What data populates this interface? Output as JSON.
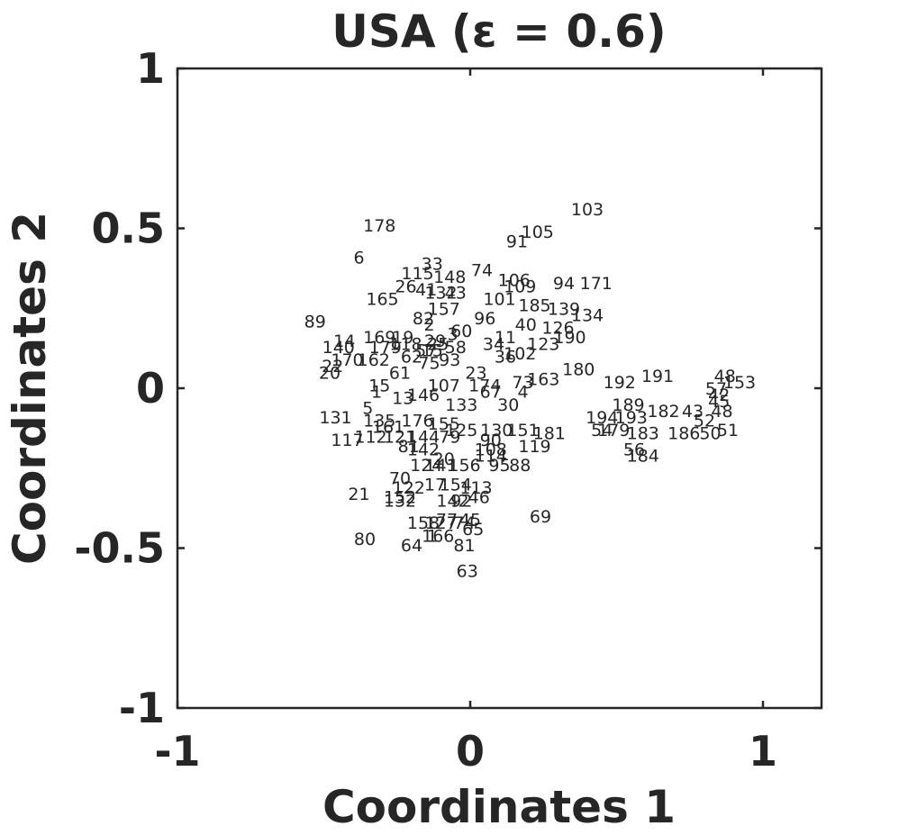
{
  "chart_data": {
    "type": "scatter",
    "title": "USA (ε = 0.6)",
    "xlabel": "Coordinates 1",
    "ylabel": "Coordinates 2",
    "xlim": [
      -1,
      1.2
    ],
    "ylim": [
      -1,
      1
    ],
    "xticks": [
      -1,
      0,
      1
    ],
    "yticks": [
      -1,
      -0.5,
      0,
      0.5,
      1
    ],
    "xtick_labels": [
      "-1",
      "0",
      "1"
    ],
    "ytick_labels": [
      "-1",
      "-0.5",
      "0",
      "0.5",
      "1"
    ],
    "grid": false,
    "marker": "text",
    "points": [
      {
        "label": "103",
        "x": 0.4,
        "y": 0.56
      },
      {
        "label": "178",
        "x": -0.31,
        "y": 0.51
      },
      {
        "label": "105",
        "x": 0.23,
        "y": 0.49
      },
      {
        "label": "91",
        "x": 0.16,
        "y": 0.46
      },
      {
        "label": "6",
        "x": -0.38,
        "y": 0.41
      },
      {
        "label": "33",
        "x": -0.13,
        "y": 0.39
      },
      {
        "label": "74",
        "x": 0.04,
        "y": 0.37
      },
      {
        "label": "115",
        "x": -0.18,
        "y": 0.36
      },
      {
        "label": "148",
        "x": -0.07,
        "y": 0.35
      },
      {
        "label": "106",
        "x": 0.15,
        "y": 0.34
      },
      {
        "label": "94",
        "x": 0.32,
        "y": 0.33
      },
      {
        "label": "171",
        "x": 0.43,
        "y": 0.33
      },
      {
        "label": "26",
        "x": -0.22,
        "y": 0.32
      },
      {
        "label": "109",
        "x": 0.17,
        "y": 0.32
      },
      {
        "label": "41",
        "x": -0.15,
        "y": 0.31
      },
      {
        "label": "132",
        "x": -0.1,
        "y": 0.3
      },
      {
        "label": "43",
        "x": -0.05,
        "y": 0.3
      },
      {
        "label": "165",
        "x": -0.3,
        "y": 0.28
      },
      {
        "label": "101",
        "x": 0.1,
        "y": 0.28
      },
      {
        "label": "185",
        "x": 0.22,
        "y": 0.26
      },
      {
        "label": "139",
        "x": 0.32,
        "y": 0.25
      },
      {
        "label": "157",
        "x": -0.09,
        "y": 0.25
      },
      {
        "label": "134",
        "x": 0.4,
        "y": 0.23
      },
      {
        "label": "82",
        "x": -0.16,
        "y": 0.22
      },
      {
        "label": "96",
        "x": 0.05,
        "y": 0.22
      },
      {
        "label": "89",
        "x": -0.53,
        "y": 0.21
      },
      {
        "label": "2",
        "x": -0.14,
        "y": 0.2
      },
      {
        "label": "40",
        "x": 0.19,
        "y": 0.2
      },
      {
        "label": "126",
        "x": 0.3,
        "y": 0.19
      },
      {
        "label": "60",
        "x": -0.03,
        "y": 0.18
      },
      {
        "label": "190",
        "x": 0.34,
        "y": 0.16
      },
      {
        "label": "169",
        "x": -0.31,
        "y": 0.16
      },
      {
        "label": "19",
        "x": -0.23,
        "y": 0.16
      },
      {
        "label": "3",
        "x": -0.06,
        "y": 0.17
      },
      {
        "label": "11",
        "x": 0.12,
        "y": 0.16
      },
      {
        "label": "29",
        "x": -0.12,
        "y": 0.15
      },
      {
        "label": "123",
        "x": 0.25,
        "y": 0.14
      },
      {
        "label": "14",
        "x": -0.43,
        "y": 0.15
      },
      {
        "label": "118",
        "x": -0.22,
        "y": 0.14
      },
      {
        "label": "25",
        "x": -0.11,
        "y": 0.14
      },
      {
        "label": "34",
        "x": 0.08,
        "y": 0.14
      },
      {
        "label": "140",
        "x": -0.45,
        "y": 0.13
      },
      {
        "label": "179",
        "x": -0.29,
        "y": 0.13
      },
      {
        "label": "58",
        "x": -0.05,
        "y": 0.13
      },
      {
        "label": "102",
        "x": 0.17,
        "y": 0.11
      },
      {
        "label": "57",
        "x": -0.15,
        "y": 0.12
      },
      {
        "label": "15",
        "x": -0.13,
        "y": 0.12
      },
      {
        "label": "62",
        "x": -0.2,
        "y": 0.1
      },
      {
        "label": "36",
        "x": 0.12,
        "y": 0.1
      },
      {
        "label": "170",
        "x": -0.42,
        "y": 0.09
      },
      {
        "label": "162",
        "x": -0.33,
        "y": 0.09
      },
      {
        "label": "75",
        "x": -0.14,
        "y": 0.08
      },
      {
        "label": "93",
        "x": -0.07,
        "y": 0.09
      },
      {
        "label": "22",
        "x": -0.47,
        "y": 0.07
      },
      {
        "label": "23",
        "x": 0.02,
        "y": 0.05
      },
      {
        "label": "180",
        "x": 0.37,
        "y": 0.06
      },
      {
        "label": "20",
        "x": -0.48,
        "y": 0.05
      },
      {
        "label": "61",
        "x": -0.24,
        "y": 0.05
      },
      {
        "label": "191",
        "x": 0.64,
        "y": 0.04
      },
      {
        "label": "163",
        "x": 0.25,
        "y": 0.03
      },
      {
        "label": "48",
        "x": 0.87,
        "y": 0.04
      },
      {
        "label": "73",
        "x": 0.18,
        "y": 0.02
      },
      {
        "label": "153",
        "x": 0.92,
        "y": 0.02
      },
      {
        "label": "192",
        "x": 0.51,
        "y": 0.02
      },
      {
        "label": "15",
        "x": -0.31,
        "y": 0.01
      },
      {
        "label": "107",
        "x": -0.09,
        "y": 0.01
      },
      {
        "label": "174",
        "x": 0.05,
        "y": 0.01
      },
      {
        "label": "1",
        "x": -0.32,
        "y": -0.01
      },
      {
        "label": "4",
        "x": 0.18,
        "y": -0.01
      },
      {
        "label": "67",
        "x": 0.07,
        "y": -0.01
      },
      {
        "label": "57",
        "x": 0.84,
        "y": 0.0
      },
      {
        "label": "13",
        "x": -0.23,
        "y": -0.03
      },
      {
        "label": "146",
        "x": -0.16,
        "y": -0.02
      },
      {
        "label": "42",
        "x": 0.85,
        "y": -0.02
      },
      {
        "label": "5",
        "x": -0.35,
        "y": -0.06
      },
      {
        "label": "133",
        "x": -0.03,
        "y": -0.05
      },
      {
        "label": "30",
        "x": 0.13,
        "y": -0.05
      },
      {
        "label": "189",
        "x": 0.54,
        "y": -0.05
      },
      {
        "label": "45",
        "x": 0.85,
        "y": -0.04
      },
      {
        "label": "182",
        "x": 0.66,
        "y": -0.07
      },
      {
        "label": "43",
        "x": 0.76,
        "y": -0.07
      },
      {
        "label": "48",
        "x": 0.86,
        "y": -0.07
      },
      {
        "label": "131",
        "x": -0.46,
        "y": -0.09
      },
      {
        "label": "194",
        "x": 0.45,
        "y": -0.09
      },
      {
        "label": "193",
        "x": 0.55,
        "y": -0.09
      },
      {
        "label": "52",
        "x": 0.8,
        "y": -0.1
      },
      {
        "label": "135",
        "x": -0.31,
        "y": -0.1
      },
      {
        "label": "176",
        "x": -0.18,
        "y": -0.1
      },
      {
        "label": "155",
        "x": -0.09,
        "y": -0.11
      },
      {
        "label": "161",
        "x": -0.28,
        "y": -0.12
      },
      {
        "label": "51",
        "x": 0.88,
        "y": -0.13
      },
      {
        "label": "130",
        "x": 0.09,
        "y": -0.13
      },
      {
        "label": "151",
        "x": 0.18,
        "y": -0.13
      },
      {
        "label": "125",
        "x": -0.03,
        "y": -0.13
      },
      {
        "label": "54",
        "x": 0.45,
        "y": -0.13
      },
      {
        "label": "179",
        "x": 0.49,
        "y": -0.13
      },
      {
        "label": "183",
        "x": 0.59,
        "y": -0.14
      },
      {
        "label": "186",
        "x": 0.73,
        "y": -0.14
      },
      {
        "label": "50",
        "x": 0.82,
        "y": -0.14
      },
      {
        "label": "181",
        "x": 0.27,
        "y": -0.14
      },
      {
        "label": "112",
        "x": -0.34,
        "y": -0.15
      },
      {
        "label": "117",
        "x": -0.42,
        "y": -0.16
      },
      {
        "label": "121",
        "x": -0.24,
        "y": -0.15
      },
      {
        "label": "144",
        "x": -0.16,
        "y": -0.15
      },
      {
        "label": "79",
        "x": -0.07,
        "y": -0.15
      },
      {
        "label": "90",
        "x": 0.07,
        "y": -0.16
      },
      {
        "label": "119",
        "x": 0.22,
        "y": -0.18
      },
      {
        "label": "81",
        "x": -0.21,
        "y": -0.18
      },
      {
        "label": "142",
        "x": -0.16,
        "y": -0.19
      },
      {
        "label": "56",
        "x": 0.56,
        "y": -0.19
      },
      {
        "label": "108",
        "x": 0.07,
        "y": -0.19
      },
      {
        "label": "184",
        "x": 0.59,
        "y": -0.21
      },
      {
        "label": "20",
        "x": -0.09,
        "y": -0.22
      },
      {
        "label": "114",
        "x": 0.07,
        "y": -0.21
      },
      {
        "label": "88",
        "x": 0.17,
        "y": -0.24
      },
      {
        "label": "124",
        "x": -0.15,
        "y": -0.24
      },
      {
        "label": "141",
        "x": -0.1,
        "y": -0.24
      },
      {
        "label": "156",
        "x": -0.02,
        "y": -0.24
      },
      {
        "label": "95",
        "x": 0.1,
        "y": -0.24
      },
      {
        "label": "70",
        "x": -0.24,
        "y": -0.28
      },
      {
        "label": "122",
        "x": -0.21,
        "y": -0.31
      },
      {
        "label": "17",
        "x": -0.12,
        "y": -0.3
      },
      {
        "label": "154",
        "x": -0.05,
        "y": -0.3
      },
      {
        "label": "113",
        "x": 0.02,
        "y": -0.31
      },
      {
        "label": "21",
        "x": -0.38,
        "y": -0.33
      },
      {
        "label": "152",
        "x": -0.24,
        "y": -0.34
      },
      {
        "label": "132",
        "x": -0.24,
        "y": -0.35
      },
      {
        "label": "46",
        "x": 0.03,
        "y": -0.34
      },
      {
        "label": "142",
        "x": -0.06,
        "y": -0.35
      },
      {
        "label": "92",
        "x": -0.03,
        "y": -0.35
      },
      {
        "label": "69",
        "x": 0.24,
        "y": -0.4
      },
      {
        "label": "77",
        "x": -0.08,
        "y": -0.41
      },
      {
        "label": "45",
        "x": 0.0,
        "y": -0.41
      },
      {
        "label": "158",
        "x": -0.16,
        "y": -0.42
      },
      {
        "label": "127",
        "x": -0.1,
        "y": -0.42
      },
      {
        "label": "74",
        "x": -0.02,
        "y": -0.42
      },
      {
        "label": "65",
        "x": 0.01,
        "y": -0.44
      },
      {
        "label": "1",
        "x": -0.13,
        "y": -0.46
      },
      {
        "label": "166",
        "x": -0.11,
        "y": -0.46
      },
      {
        "label": "80",
        "x": -0.36,
        "y": -0.47
      },
      {
        "label": "64",
        "x": -0.2,
        "y": -0.49
      },
      {
        "label": "81",
        "x": -0.02,
        "y": -0.49
      },
      {
        "label": "63",
        "x": -0.01,
        "y": -0.57
      }
    ]
  }
}
